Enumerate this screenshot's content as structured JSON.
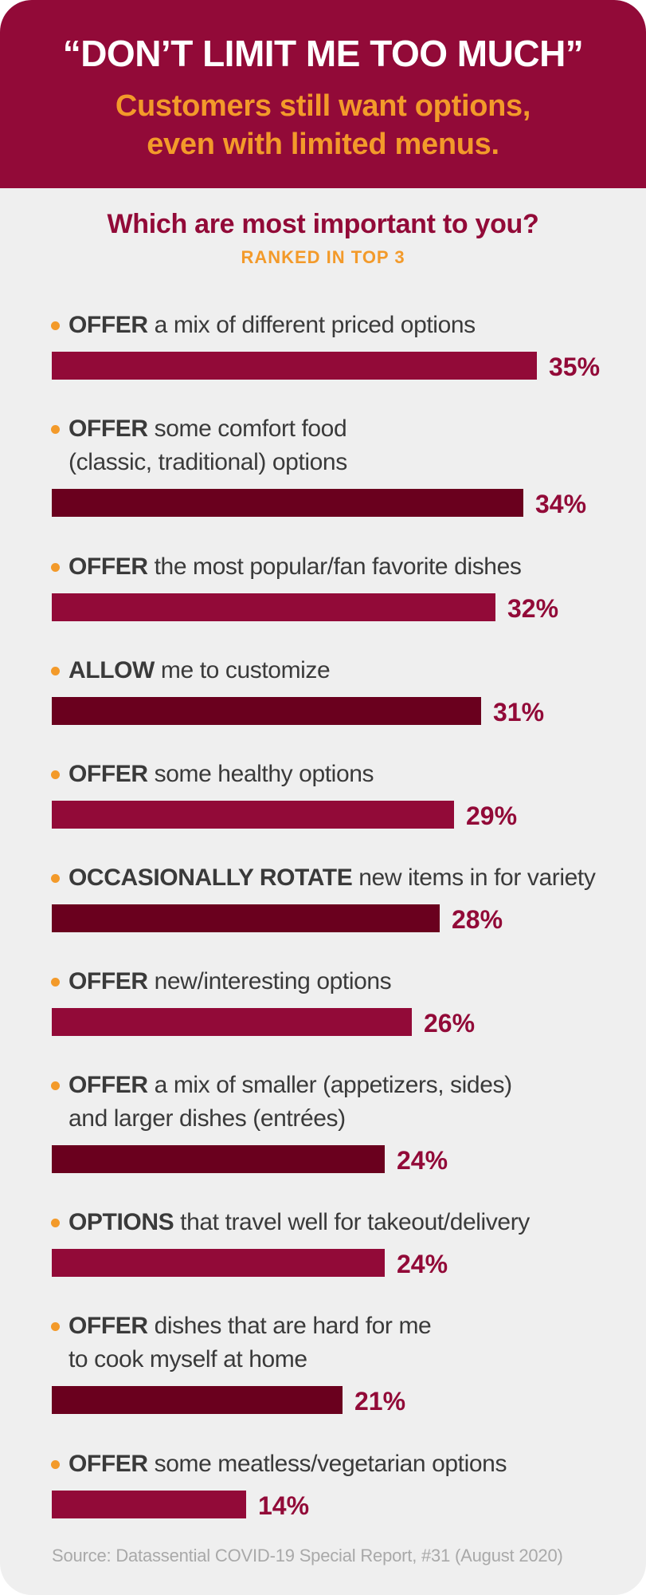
{
  "header": {
    "title": "“DON’T LIMIT ME TOO MUCH”",
    "subtitle_line1": "Customers still want options,",
    "subtitle_line2": "even with limited menus."
  },
  "question": "Which are most important to you?",
  "ranked_note": "RANKED IN TOP 3",
  "source": "Source: Datassential COVID-19 Special Report, #31 (August 2020)",
  "colors": {
    "header_bg": "#920a38",
    "accent_orange": "#f39a2a",
    "bar_primary": "#920a38",
    "bar_dark": "#6a001e",
    "background": "#efefef"
  },
  "chart_data": {
    "type": "bar",
    "orientation": "horizontal",
    "title": "Which are most important to you?",
    "subtitle": "RANKED IN TOP 3",
    "unit": "%",
    "grid": false,
    "legend": "none",
    "items": [
      {
        "keyword": "OFFER",
        "lines": [
          "a mix of different priced options"
        ],
        "value": 35,
        "label": "35%"
      },
      {
        "keyword": "OFFER",
        "lines": [
          "some comfort food",
          "(classic, traditional) options"
        ],
        "value": 34,
        "label": "34%"
      },
      {
        "keyword": "OFFER",
        "lines": [
          "the most popular/fan favorite dishes"
        ],
        "value": 32,
        "label": "32%"
      },
      {
        "keyword": "ALLOW",
        "lines": [
          "me to customize"
        ],
        "value": 31,
        "label": "31%"
      },
      {
        "keyword": "OFFER",
        "lines": [
          "some healthy options"
        ],
        "value": 29,
        "label": "29%"
      },
      {
        "keyword": "OCCASIONALLY ROTATE",
        "lines": [
          "new items in for variety"
        ],
        "value": 28,
        "label": "28%"
      },
      {
        "keyword": "OFFER",
        "lines": [
          "new/interesting options"
        ],
        "value": 26,
        "label": "26%"
      },
      {
        "keyword": "OFFER",
        "lines": [
          "a mix of smaller (appetizers, sides)",
          "and larger dishes (entrées)"
        ],
        "value": 24,
        "label": "24%"
      },
      {
        "keyword": "OPTIONS",
        "lines": [
          "that travel well for takeout/delivery"
        ],
        "value": 24,
        "label": "24%"
      },
      {
        "keyword": "OFFER",
        "lines": [
          "dishes that are hard for me",
          "to cook myself at home"
        ],
        "value": 21,
        "label": "21%"
      },
      {
        "keyword": "OFFER",
        "lines": [
          "some meatless/vegetarian options"
        ],
        "value": 14,
        "label": "14%"
      }
    ]
  }
}
